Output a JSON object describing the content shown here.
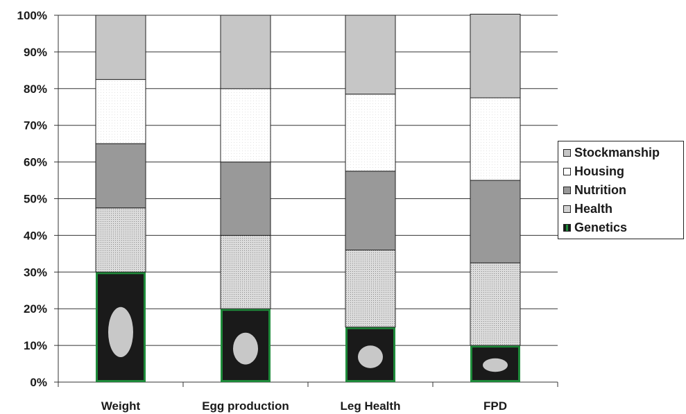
{
  "chart_data": {
    "type": "bar",
    "stacked": true,
    "categories": [
      "Weight",
      "Egg production",
      "Leg Health",
      "FPD"
    ],
    "series": [
      {
        "name": "Genetics",
        "values": [
          30,
          20,
          15,
          10
        ],
        "color": "#1a1a1a",
        "border": "#1e8a3a",
        "pattern": "photo"
      },
      {
        "name": "Health",
        "values": [
          17.5,
          20,
          21,
          22.5
        ],
        "color": "#d6d6d6",
        "pattern": "dots"
      },
      {
        "name": "Nutrition",
        "values": [
          17.5,
          20,
          21.5,
          22.5
        ],
        "color": "#999999",
        "pattern": "solid"
      },
      {
        "name": "Housing",
        "values": [
          17.5,
          20,
          21,
          22.5
        ],
        "color": "#ffffff",
        "pattern": "fine-dots"
      },
      {
        "name": "Stockmanship",
        "values": [
          17.5,
          20,
          21.5,
          22.8
        ],
        "color": "#c6c6c6",
        "pattern": "solid"
      }
    ],
    "legend_order": [
      "Stockmanship",
      "Housing",
      "Nutrition",
      "Health",
      "Genetics"
    ],
    "y_ticks": [
      "0%",
      "10%",
      "20%",
      "30%",
      "40%",
      "50%",
      "60%",
      "70%",
      "80%",
      "90%",
      "100%"
    ],
    "ylim": [
      0,
      100
    ],
    "grid": true,
    "legend_position": "right"
  }
}
